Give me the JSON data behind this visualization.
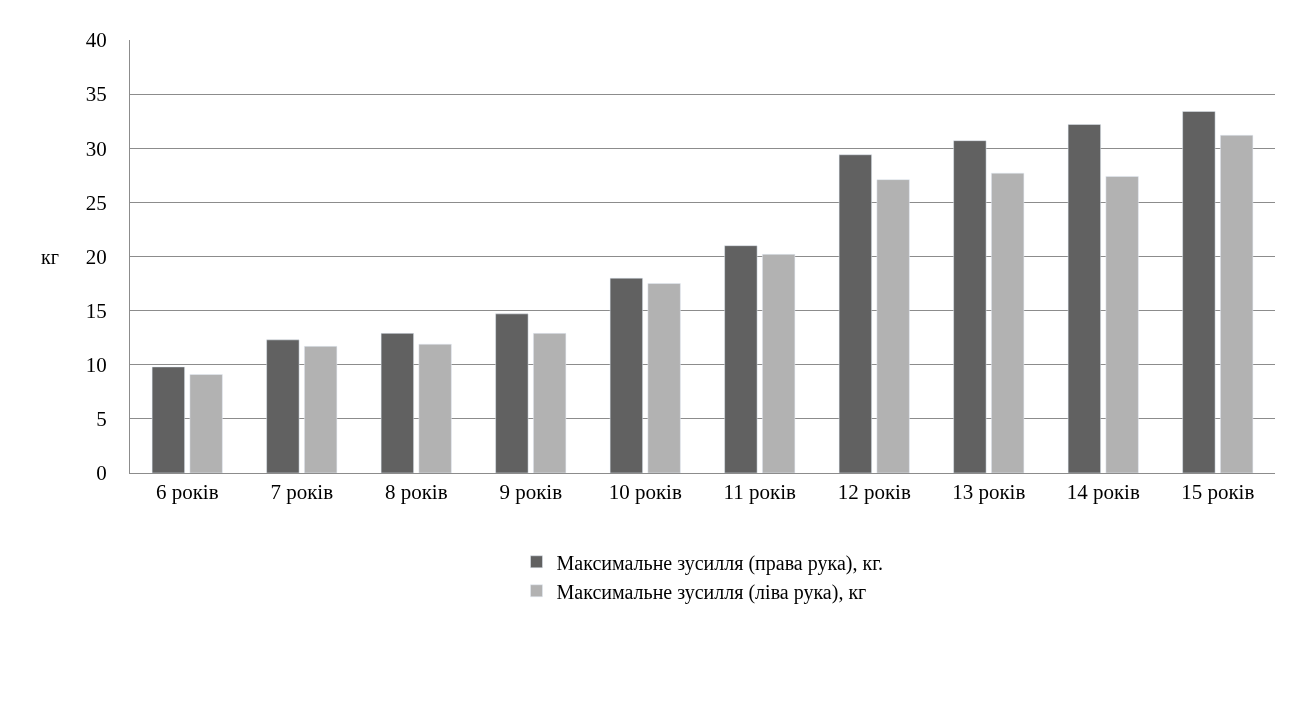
{
  "chart_data": {
    "type": "bar",
    "ylabel": "кг",
    "categories": [
      "6 років",
      "7 років",
      "8 років",
      "9 років",
      "10 років",
      "11 років",
      "12 років",
      "13 років",
      "14 років",
      "15 років"
    ],
    "series": [
      {
        "name": "Максимальне зусилля (права рука), кг.",
        "color": "#616161",
        "values": [
          9.8,
          12.3,
          12.9,
          14.7,
          18.0,
          21.0,
          29.4,
          30.7,
          32.2,
          33.4
        ]
      },
      {
        "name": "Максимальне зусилля (ліва рука), кг",
        "color": "#b2b2b2",
        "values": [
          9.1,
          11.7,
          11.9,
          12.9,
          17.5,
          20.2,
          27.1,
          27.7,
          27.4,
          31.2
        ]
      }
    ],
    "ylim": [
      0,
      40
    ],
    "yticks": [
      0,
      5,
      10,
      15,
      20,
      25,
      30,
      35,
      40
    ],
    "grid": "y",
    "legend": "bottom"
  }
}
